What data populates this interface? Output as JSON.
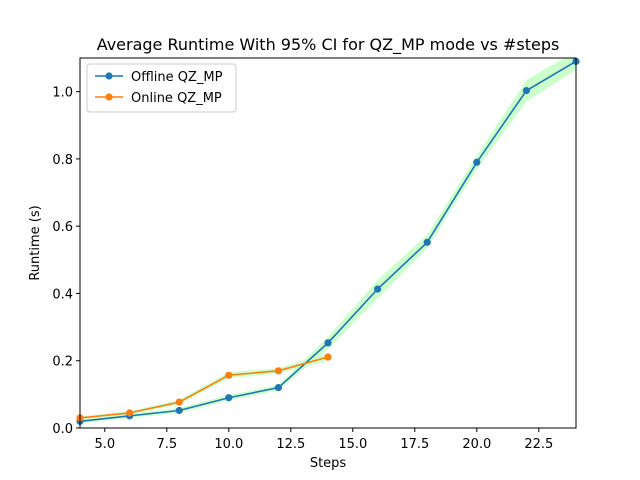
{
  "chart_data": {
    "type": "line",
    "title": "Average Runtime With 95% CI for QZ_MP mode vs #steps",
    "xlabel": "Steps",
    "ylabel": "Runtime (s)",
    "xlim": [
      4,
      24
    ],
    "ylim": [
      0,
      1.1
    ],
    "xticks": [
      5.0,
      7.5,
      10.0,
      12.5,
      15.0,
      17.5,
      20.0,
      22.5
    ],
    "xtick_labels": [
      "5.0",
      "7.5",
      "10.0",
      "12.5",
      "15.0",
      "17.5",
      "20.0",
      "22.5"
    ],
    "yticks": [
      0.0,
      0.2,
      0.4,
      0.6,
      0.8,
      1.0
    ],
    "ytick_labels": [
      "0.0",
      "0.2",
      "0.4",
      "0.6",
      "0.8",
      "1.0"
    ],
    "grid": false,
    "legend": "top-left",
    "ci_color": "#c6ffc6",
    "series": [
      {
        "name": "Offline QZ_MP",
        "color": "#1f77b4",
        "x": [
          4,
          6,
          8,
          10,
          12,
          14,
          16,
          18,
          20,
          22,
          24
        ],
        "y": [
          0.02,
          0.036,
          0.052,
          0.09,
          0.12,
          0.253,
          0.413,
          0.552,
          0.79,
          1.003,
          1.09
        ],
        "ci_low": [
          0.015,
          0.03,
          0.045,
          0.082,
          0.112,
          0.235,
          0.385,
          0.535,
          0.77,
          0.97,
          1.065
        ],
        "ci_high": [
          0.025,
          0.042,
          0.06,
          0.098,
          0.128,
          0.27,
          0.44,
          0.575,
          0.81,
          1.035,
          1.12
        ]
      },
      {
        "name": "Online QZ_MP",
        "color": "#ff7f0e",
        "x": [
          4,
          6,
          8,
          10,
          12,
          14
        ],
        "y": [
          0.03,
          0.045,
          0.077,
          0.157,
          0.17,
          0.211
        ],
        "ci_low": [
          0.026,
          0.04,
          0.07,
          0.148,
          0.162,
          0.2
        ],
        "ci_high": [
          0.034,
          0.05,
          0.084,
          0.166,
          0.178,
          0.222
        ]
      }
    ]
  }
}
